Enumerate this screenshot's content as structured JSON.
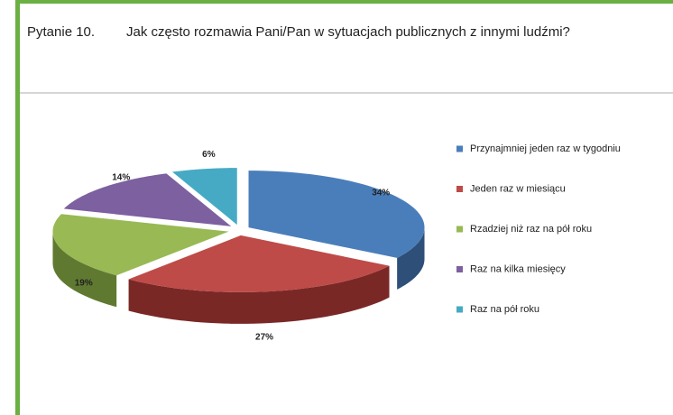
{
  "header": {
    "label": "Pytanie 10.",
    "question": "Jak często rozmawia Pani/Pan w sytuacjach publicznych z innymi ludźmi?"
  },
  "chart_data": {
    "type": "pie",
    "categories": [
      "Przynajmniej jeden raz w tygodniu",
      "Jeden raz w miesiącu",
      "Rzadziej niż raz na pół roku",
      "Raz na kilka miesięcy",
      "Raz na pół roku"
    ],
    "values": [
      34,
      27,
      19,
      14,
      6
    ],
    "value_labels": [
      "34%",
      "27%",
      "19%",
      "14%",
      "6%"
    ],
    "colors": [
      "#4a7ebb",
      "#be4b48",
      "#98b954",
      "#7d60a0",
      "#46aac5"
    ],
    "side_colors": [
      "#2d4f78",
      "#7a2826",
      "#5f7a30",
      "#4e3a66",
      "#2a7087"
    ]
  }
}
